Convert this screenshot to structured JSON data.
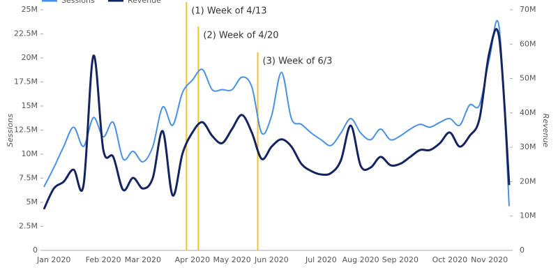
{
  "chart_data": {
    "type": "line",
    "categories": [
      null,
      "Jan 2020",
      null,
      null,
      null,
      null,
      "Feb 2020",
      null,
      null,
      null,
      "Mar 2020",
      null,
      null,
      null,
      null,
      "Apr 2020",
      null,
      null,
      null,
      "May 2020",
      null,
      null,
      null,
      "Jun 2020",
      null,
      null,
      null,
      null,
      "Jul 2020",
      null,
      null,
      null,
      "Aug 2020",
      null,
      null,
      null,
      "Sep 2020",
      null,
      null,
      null,
      null,
      "Oct 2020",
      null,
      null,
      null,
      "Nov 2020",
      null,
      null
    ],
    "series": [
      {
        "name": "Sessions",
        "color": "#4a90e2",
        "axis": "y",
        "values": [
          6.6,
          8.6,
          10.8,
          12.8,
          10.8,
          13.8,
          11.8,
          13.3,
          9.5,
          10.3,
          9.2,
          10.8,
          14.9,
          13,
          16.4,
          17.7,
          18.8,
          16.7,
          16.7,
          16.7,
          18,
          17,
          12.2,
          14,
          18.5,
          13.7,
          13.1,
          12.2,
          11.5,
          10.9,
          12.2,
          13.7,
          12.2,
          11.5,
          12.6,
          11.5,
          11.9,
          12.6,
          13.1,
          12.8,
          13.3,
          13.7,
          13,
          15.1,
          15.1,
          19.9,
          23.1,
          4.6
        ]
      },
      {
        "name": "Revenue",
        "color": "#142460",
        "axis": "y2",
        "values": [
          12,
          18,
          20,
          23.5,
          19,
          56.6,
          29.2,
          27.2,
          17.6,
          21.1,
          18,
          21.1,
          34.7,
          16,
          28.2,
          34.3,
          37.3,
          33.3,
          31.2,
          35.3,
          39.4,
          34.3,
          26.6,
          30.2,
          32.3,
          30.2,
          25.2,
          23.1,
          22.1,
          22.5,
          26.2,
          36.3,
          24.6,
          24.1,
          27.2,
          24.8,
          25.2,
          27.2,
          29.2,
          29.2,
          31.2,
          34.3,
          30.2,
          33.3,
          38.3,
          57.6,
          61.7,
          19
        ]
      }
    ],
    "y_label": "Sessions",
    "y2_label": "Revenue",
    "ylim": [
      0,
      25
    ],
    "yticks": [
      0,
      {
        "value": 2.5,
        "label": "2.5M"
      },
      {
        "value": 5,
        "label": "5M"
      },
      {
        "value": 7.5,
        "label": "7.5M"
      },
      {
        "value": 10,
        "label": "10M"
      },
      {
        "value": 12.5,
        "label": "12.5M"
      },
      {
        "value": 15,
        "label": "15M"
      },
      {
        "value": 17.5,
        "label": "17.5M"
      },
      {
        "value": 20,
        "label": "20M"
      },
      {
        "value": 22.5,
        "label": "22.5M"
      },
      {
        "value": 25,
        "label": "25M"
      }
    ],
    "y2lim": [
      0,
      70
    ],
    "y2ticks": [
      0,
      {
        "value": 10,
        "label": "10M"
      },
      {
        "value": 20,
        "label": "20M"
      },
      {
        "value": 30,
        "label": "30M"
      },
      {
        "value": 40,
        "label": "40M"
      },
      {
        "value": 50,
        "label": "50M"
      },
      {
        "value": 60,
        "label": "60M"
      },
      {
        "value": 70,
        "label": "70M"
      }
    ],
    "annotations": [
      {
        "text": "(1) Week of 4/13",
        "x": 14.4
      },
      {
        "text": "(2) Week of 4/20",
        "x": 15.6
      },
      {
        "text": "(3) Week of 6/3",
        "x": 21.6
      }
    ],
    "annotation_color": "#f2c12e",
    "legend": "top-left"
  }
}
